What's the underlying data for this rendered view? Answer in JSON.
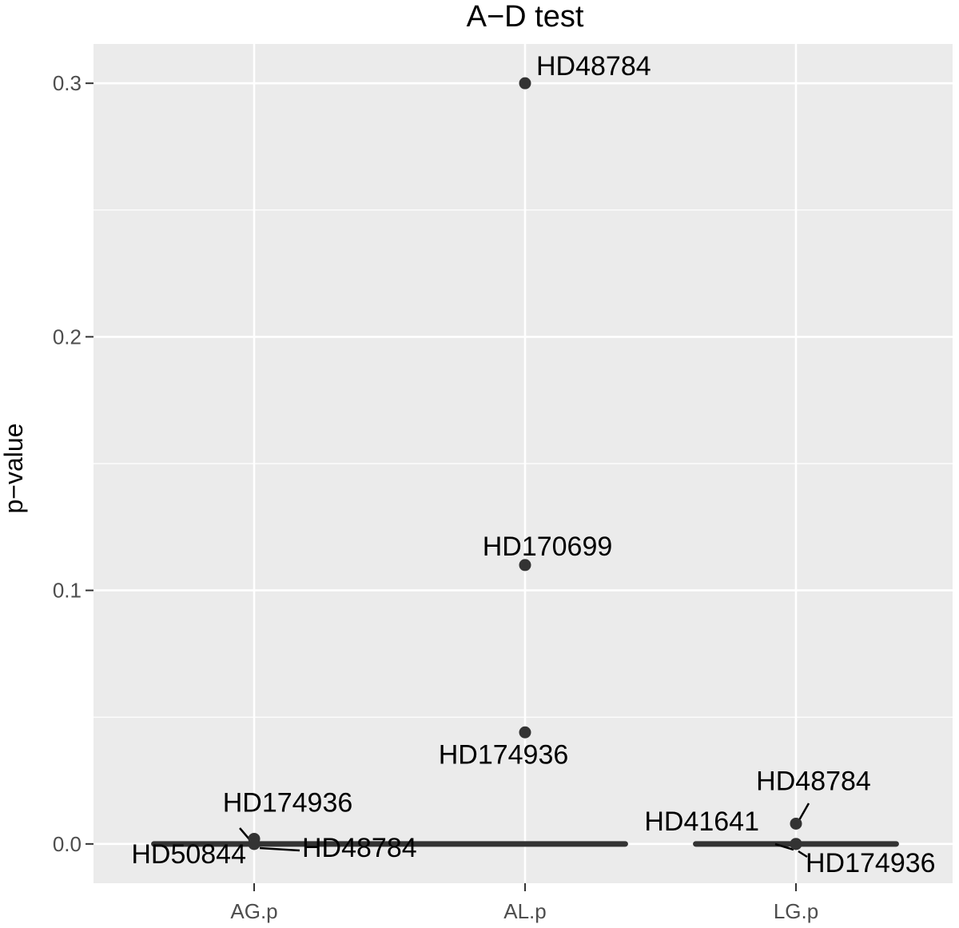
{
  "chart_data": {
    "type": "scatter",
    "title": "A−D test",
    "xlabel": "",
    "ylabel": "p−value",
    "categories": [
      "AG.p",
      "AL.p",
      "LG.p"
    ],
    "ylim": [
      -0.0155,
      0.3155
    ],
    "yticks": [
      0.0,
      0.1,
      0.2,
      0.3
    ],
    "ytick_labels": [
      "0.0",
      "0.1",
      "0.2",
      "0.3"
    ],
    "grid": true,
    "legend": "none",
    "points": [
      {
        "category": "AG.p",
        "value": 0.0,
        "label": "HD50844"
      },
      {
        "category": "AG.p",
        "value": 0.002,
        "label": "HD174936"
      },
      {
        "category": "AG.p",
        "value": 0.0,
        "label": "HD48784"
      },
      {
        "category": "AL.p",
        "value": 0.3,
        "label": "HD48784"
      },
      {
        "category": "AL.p",
        "value": 0.11,
        "label": "HD170699"
      },
      {
        "category": "AL.p",
        "value": 0.044,
        "label": "HD174936"
      },
      {
        "category": "LG.p",
        "value": 0.008,
        "label": "HD48784"
      },
      {
        "category": "LG.p",
        "value": 0.0,
        "label": "HD41641"
      },
      {
        "category": "LG.p",
        "value": 0.0,
        "label": "HD174936"
      }
    ],
    "bands": [
      {
        "x_start": "AG.p",
        "x_start_offset": -0.37,
        "x_end": "AL.p",
        "x_end_offset": 0.37,
        "value": 0.0
      },
      {
        "x_start": "LG.p",
        "x_start_offset": -0.37,
        "x_end": "LG.p",
        "x_end_offset": 0.37,
        "value": 0.0
      }
    ],
    "colors": {
      "panel": "#ebebeb",
      "grid": "#ffffff",
      "point": "#333333",
      "band": "#333333"
    }
  }
}
